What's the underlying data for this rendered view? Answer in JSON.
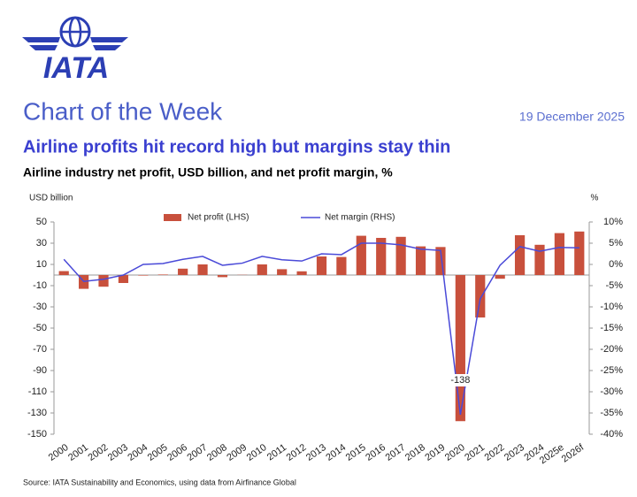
{
  "header": {
    "brand": "IATA",
    "heading": "Chart of the Week",
    "date": "19 December 2025"
  },
  "chart_data": {
    "type": "bar_line",
    "title": "Airline profits hit record high but margins stay thin",
    "subtitle": "Airline industry net profit, USD billion, and net profit margin, %",
    "y_label": "USD billion",
    "y2_label": "%",
    "source": "Source: IATA Sustainability and Economics, using data from Airfinance Global",
    "categories": [
      "2000",
      "2001",
      "2002",
      "2003",
      "2004",
      "2005",
      "2006",
      "2007",
      "2008",
      "2009",
      "2010",
      "2011",
      "2012",
      "2013",
      "2014",
      "2015",
      "2016",
      "2017",
      "2018",
      "2019",
      "2020",
      "2021",
      "2022",
      "2023",
      "2024",
      "2025e",
      "2026f"
    ],
    "series": [
      {
        "name": "Net profit (LHS)",
        "type": "bar",
        "color": "#c8503c",
        "values": [
          3.7,
          -13,
          -11,
          -7.5,
          -0.5,
          0.5,
          6,
          10,
          -2,
          0.2,
          10,
          5.5,
          3.5,
          17.5,
          17,
          37,
          35,
          36,
          27,
          26.4,
          -137.7,
          -40,
          -3.5,
          37.5,
          28.5,
          39.5,
          41
        ],
        "value_labels": [
          null,
          null,
          null,
          null,
          null,
          null,
          null,
          null,
          null,
          null,
          null,
          null,
          null,
          null,
          null,
          null,
          null,
          null,
          null,
          null,
          "-138",
          null,
          null,
          null,
          null,
          null,
          null
        ]
      },
      {
        "name": "Net margin (RHS)",
        "type": "line",
        "axis": "y2",
        "color": "#4a4ad8",
        "values": [
          1.2,
          -4,
          -3.5,
          -2.5,
          0,
          0.2,
          1.2,
          1.9,
          -0.2,
          0.3,
          1.9,
          1.1,
          0.8,
          2.5,
          2.3,
          5,
          5,
          4.6,
          3.6,
          3.3,
          -35.4,
          -8.1,
          -0.2,
          4.2,
          3.1,
          4,
          3.9
        ]
      }
    ],
    "ylim": [
      -150,
      50
    ],
    "yticks": [
      50,
      30,
      10,
      -10,
      -30,
      -50,
      -70,
      -90,
      -110,
      -130,
      -150
    ],
    "y2lim": [
      -40,
      10
    ],
    "y2ticks": [
      {
        "value": 10,
        "label": "10%"
      },
      {
        "value": 5,
        "label": "5%"
      },
      {
        "value": 0,
        "label": "0%"
      },
      {
        "value": -5,
        "label": "-5%"
      },
      {
        "value": -10,
        "label": "-10%"
      },
      {
        "value": -15,
        "label": "-15%"
      },
      {
        "value": -20,
        "label": "-20%"
      },
      {
        "value": -25,
        "label": "-25%"
      },
      {
        "value": -30,
        "label": "-30%"
      },
      {
        "value": -35,
        "label": "-35%"
      },
      {
        "value": -40,
        "label": "-40%"
      }
    ]
  }
}
